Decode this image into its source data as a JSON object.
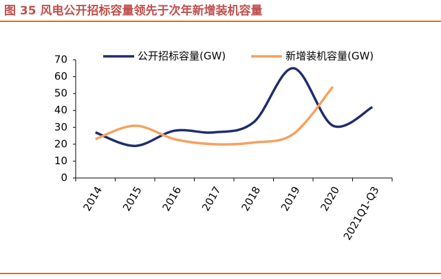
{
  "chart_data": {
    "type": "line",
    "title": "图 35 风电公开招标容量领先于次年新增装机容量",
    "categories": [
      "2014",
      "2015",
      "2016",
      "2017",
      "2018",
      "2019",
      "2020",
      "2021Q1-Q3"
    ],
    "series": [
      {
        "name": "公开招标容量(GW)",
        "color": "#1f2d6b",
        "values": [
          27,
          19,
          28,
          27,
          33,
          65,
          31,
          42
        ]
      },
      {
        "name": "新增装机容量(GW)",
        "color": "#f4a15d",
        "values": [
          23,
          31,
          23,
          20,
          21,
          26,
          54,
          null
        ]
      }
    ],
    "ylim": [
      0,
      70
    ],
    "yticks": [
      0,
      10,
      20,
      30,
      40,
      50,
      60,
      70
    ],
    "grid": false
  }
}
